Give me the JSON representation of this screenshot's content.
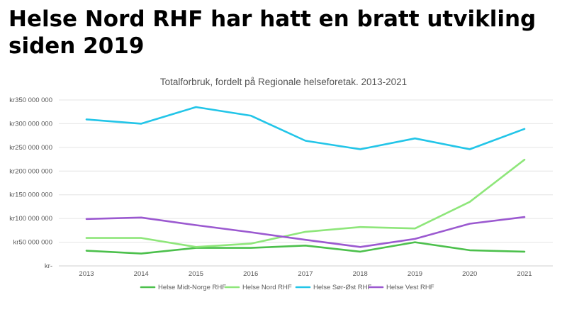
{
  "headline": "Helse Nord RHF har hatt en bratt utvikling siden 2019",
  "chart_data": {
    "type": "line",
    "title": "Totalforbruk, fordelt på Regionale helseforetak. 2013-2021",
    "xlabel": "",
    "ylabel": "",
    "categories": [
      "2013",
      "2014",
      "2015",
      "2016",
      "2017",
      "2018",
      "2019",
      "2020",
      "2021"
    ],
    "ylim": [
      0,
      350000000
    ],
    "y_ticks": [
      0,
      50000000,
      100000000,
      150000000,
      200000000,
      250000000,
      300000000,
      350000000
    ],
    "y_tick_labels": [
      "kr-",
      "kr50 000 000",
      "kr100 000 000",
      "kr150 000 000",
      "kr200 000 000",
      "kr250 000 000",
      "kr300 000 000",
      "kr350 000 000"
    ],
    "grid": true,
    "legend_position": "bottom",
    "series": [
      {
        "name": "Helse Midt-Norge RHF",
        "color": "#4cc04c",
        "values": [
          32000000,
          26000000,
          38000000,
          38000000,
          43000000,
          30000000,
          50000000,
          33000000,
          30000000
        ]
      },
      {
        "name": "Helse Nord RHF",
        "color": "#8ee67a",
        "values": [
          59000000,
          59000000,
          40000000,
          47000000,
          72000000,
          82000000,
          79000000,
          135000000,
          224000000
        ]
      },
      {
        "name": "Helse Sør-Øst RHF",
        "color": "#22c5e8",
        "values": [
          309000000,
          300000000,
          335000000,
          317000000,
          264000000,
          246000000,
          269000000,
          246000000,
          289000000
        ]
      },
      {
        "name": "Helse Vest RHF",
        "color": "#9b59d0",
        "values": [
          99000000,
          102000000,
          86000000,
          71000000,
          55000000,
          40000000,
          57000000,
          89000000,
          103000000
        ]
      }
    ]
  }
}
